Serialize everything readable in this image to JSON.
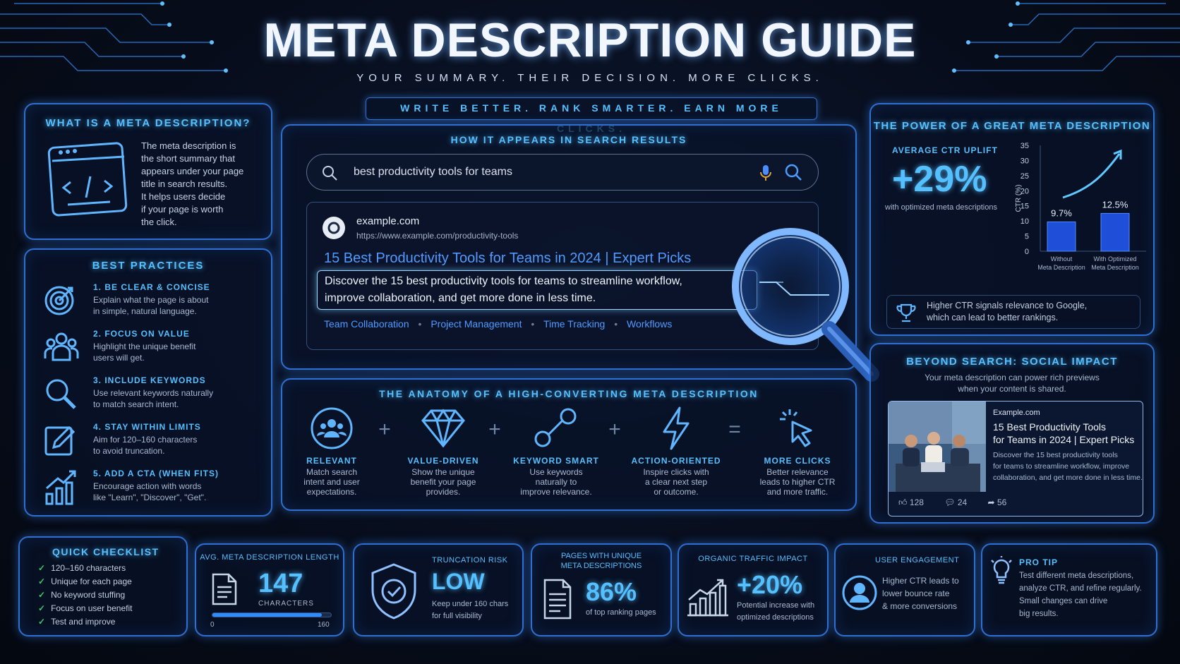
{
  "header": {
    "title": "META DESCRIPTION GUIDE",
    "subtitle": "YOUR SUMMARY. THEIR DECISION. MORE CLICKS.",
    "tagline": "WRITE BETTER. RANK SMARTER. EARN MORE CLICKS."
  },
  "what_is": {
    "title": "WHAT IS A META DESCRIPTION?",
    "lines": [
      "The meta description is",
      "the short summary that",
      "appears under your page",
      "title in search results.",
      "It helps users decide",
      "if your page is worth",
      "the click."
    ],
    "icon": "code-window-icon"
  },
  "best_practices": {
    "title": "BEST PRACTICES",
    "items": [
      {
        "heading": "1. BE CLEAR & CONCISE",
        "line1": "Explain what the page is about",
        "line2": "in simple, natural language.",
        "icon": "target-icon"
      },
      {
        "heading": "2. FOCUS ON VALUE",
        "line1": "Highlight the unique benefit",
        "line2": "users will get.",
        "icon": "users-icon"
      },
      {
        "heading": "3. INCLUDE KEYWORDS",
        "line1": "Use relevant keywords naturally",
        "line2": "to match search intent.",
        "icon": "search-icon"
      },
      {
        "heading": "4. STAY WITHIN LIMITS",
        "line1": "Aim for 120–160 characters",
        "line2": "to avoid truncation.",
        "icon": "pencil-icon"
      },
      {
        "heading": "5. ADD A CTA (WHEN FITS)",
        "line1": "Encourage action with words",
        "line2": "like \"Learn\", \"Discover\", \"Get\".",
        "icon": "growth-chart-icon"
      }
    ]
  },
  "search_preview": {
    "title": "HOW IT APPEARS IN SEARCH RESULTS",
    "query": "best productivity tools for teams",
    "site": "example.com",
    "url": "https://www.example.com/productivity-tools",
    "result_title": "15 Best Productivity Tools for Teams in 2024 | Expert Picks",
    "desc_line1": "Discover the 15 best productivity tools for teams to streamline workflow,",
    "desc_line2": "improve collaboration, and get more done in less time.",
    "sitelinks": [
      "Team Collaboration",
      "Project Management",
      "Time Tracking",
      "Workflows"
    ]
  },
  "anatomy": {
    "title": "THE ANATOMY OF A HIGH-CONVERTING META DESCRIPTION",
    "items": [
      {
        "label": "RELEVANT",
        "lines": [
          "Match search",
          "intent and user",
          "expectations."
        ],
        "icon": "people-circle-icon"
      },
      {
        "label": "VALUE-DRIVEN",
        "lines": [
          "Show the unique",
          "benefit your page",
          "provides."
        ],
        "icon": "diamond-icon"
      },
      {
        "label": "KEYWORD SMART",
        "lines": [
          "Use keywords",
          "naturally to",
          "improve relevance."
        ],
        "icon": "key-link-icon"
      },
      {
        "label": "ACTION-ORIENTED",
        "lines": [
          "Inspire clicks with",
          "a clear next step",
          "or outcome."
        ],
        "icon": "lightning-icon"
      },
      {
        "label": "MORE CLICKS",
        "lines": [
          "Better relevance",
          "leads to higher CTR",
          "and more traffic."
        ],
        "icon": "cursor-click-icon"
      }
    ],
    "operators": [
      "+",
      "+",
      "+",
      "="
    ]
  },
  "power": {
    "title": "THE POWER OF A GREAT META DESCRIPTION",
    "uplift_label": "AVERAGE CTR UPLIFT",
    "uplift_value": "+29%",
    "uplift_note": "with optimized meta descriptions",
    "note_line1": "Higher CTR signals relevance to Google,",
    "note_line2": "which can lead to better rankings."
  },
  "chart_data": {
    "type": "bar",
    "categories": [
      "Without\nMeta Description",
      "With Optimized\nMeta Description"
    ],
    "category_lines": [
      [
        "Without",
        "Meta Description"
      ],
      [
        "With Optimized",
        "Meta Description"
      ]
    ],
    "values": [
      9.7,
      12.5
    ],
    "value_labels": [
      "9.7%",
      "12.5%"
    ],
    "ylabel": "CTR (%)",
    "yticks": [
      0,
      5,
      10,
      15,
      20,
      25,
      30,
      35
    ],
    "ylim": [
      0,
      35
    ],
    "bar_color": "#1f4fd8"
  },
  "social": {
    "title": "BEYOND SEARCH: SOCIAL IMPACT",
    "sub1": "Your meta description can power rich previews",
    "sub2": "when your content is shared.",
    "card_site": "Example.com",
    "card_title1": "15 Best Productivity Tools",
    "card_title2": "for Teams in 2024 | Expert Picks",
    "card_desc1": "Discover the 15 best productivity tools",
    "card_desc2": "for teams to streamline workflow, improve",
    "card_desc3": "collaboration, and get more done in less time.",
    "likes": "128",
    "comments": "24",
    "shares": "56"
  },
  "checklist": {
    "title": "QUICK CHECKLIST",
    "items": [
      "120–160 characters",
      "Unique for each page",
      "No keyword stuffing",
      "Focus on user benefit",
      "Test and improve"
    ]
  },
  "avg_length": {
    "label": "AVG. META DESCRIPTION LENGTH",
    "value": "147",
    "unit": "CHARACTERS",
    "min": "0",
    "max": "160",
    "fill_fraction": 0.92
  },
  "truncation": {
    "label": "TRUNCATION RISK",
    "value": "LOW",
    "note1": "Keep under 160 chars",
    "note2": "for full visibility"
  },
  "unique_pages": {
    "label1": "PAGES WITH UNIQUE",
    "label2": "META DESCRIPTIONS",
    "value": "86%",
    "note": "of top ranking pages"
  },
  "organic": {
    "label": "ORGANIC TRAFFIC IMPACT",
    "value": "+20%",
    "note1": "Potential increase with",
    "note2": "optimized descriptions"
  },
  "engagement": {
    "label": "USER ENGAGEMENT",
    "note1": "Higher CTR leads to",
    "note2": "lower bounce rate",
    "note3": "& more conversions"
  },
  "pro_tip": {
    "label": "PRO TIP",
    "note1": "Test different meta descriptions,",
    "note2": "analyze CTR, and refine regularly.",
    "note3": "Small changes can drive",
    "note4": "big results."
  },
  "colors": {
    "accent": "#55c0ff",
    "link": "#4f9bff",
    "panel_border": "#2f6fd0",
    "background": "#070d1c"
  }
}
